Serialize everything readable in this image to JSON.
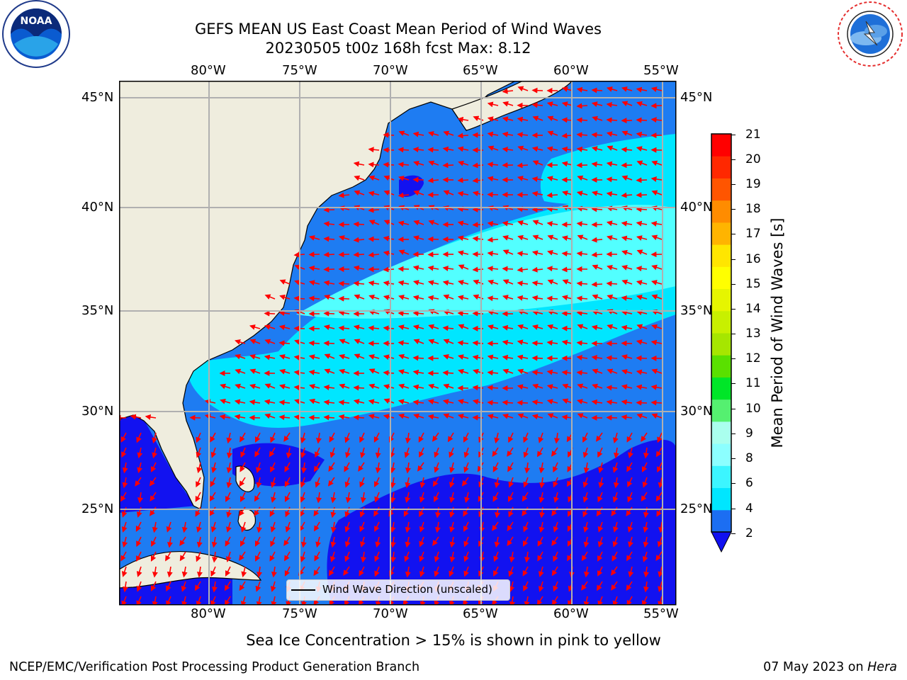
{
  "title": {
    "line1": "GEFS MEAN US East Coast Mean Period of Wind Waves",
    "line2": "20230505 t00z 168h fcst   Max: 8.12"
  },
  "logos": {
    "noaa": {
      "text": "NOAA",
      "ring": "NATIONAL OCEANIC AND ATMOSPHERIC ADMINISTRATION · U.S. DEPARTMENT OF COMMERCE"
    },
    "nws": {
      "ring": "NATIONAL WEATHER SERVICE"
    }
  },
  "map": {
    "lon_ticks": [
      "80°W",
      "75°W",
      "70°W",
      "65°W",
      "60°W",
      "55°W"
    ],
    "lat_ticks": [
      "45°N",
      "40°N",
      "35°N",
      "30°N",
      "25°N"
    ],
    "extent": {
      "lon_min": -85,
      "lon_max": -54.3,
      "lat_min": 20.5,
      "lat_max": 45.9
    },
    "legend_label": "Wind Wave Direction (unscaled)",
    "colors": {
      "land": "#efedde",
      "ocean_2_4": "#1e7cf2",
      "ocean_4_6": "#00e6ff",
      "ocean_6_8": "#52ffff",
      "ocean_lt2": "#1212f0",
      "arrows": "#ff0000",
      "grid": "#b0b0b0"
    }
  },
  "colorbar": {
    "label": "Mean Period of Wind Waves [s]",
    "ticks": [
      "21",
      "20",
      "19",
      "18",
      "17",
      "16",
      "15",
      "14",
      "13",
      "12",
      "11",
      "10",
      "9",
      "8",
      "6",
      "4",
      "2"
    ],
    "levels": [
      {
        "value": "2",
        "color": "#1c6ef2"
      },
      {
        "value": "4",
        "color": "#00e6ff"
      },
      {
        "value": "6",
        "color": "#3cf5ff"
      },
      {
        "value": "8",
        "color": "#8cffff"
      },
      {
        "value": "9",
        "color": "#aaffee"
      },
      {
        "value": "9-10",
        "color": "#55f070"
      },
      {
        "value": "10-11",
        "color": "#00e628"
      },
      {
        "value": "11-12",
        "color": "#5ae000"
      },
      {
        "value": "12-13",
        "color": "#a6e600"
      },
      {
        "value": "13-14",
        "color": "#c8f000"
      },
      {
        "value": "14-15",
        "color": "#e6f500"
      },
      {
        "value": "15-16",
        "color": "#ffff00"
      },
      {
        "value": "16-17",
        "color": "#ffe600"
      },
      {
        "value": "17-18",
        "color": "#ffb400"
      },
      {
        "value": "18-19",
        "color": "#ff8c00"
      },
      {
        "value": "19-20",
        "color": "#ff5500"
      },
      {
        "value": "20-21",
        "color": "#ff2800"
      },
      {
        "value": "21+",
        "color": "#ff0000"
      }
    ],
    "under_color": "#1010f0"
  },
  "caption": "Sea Ice Concentration > 15% is shown in pink to yellow",
  "footer": {
    "left": "NCEP/EMC/Verification Post Processing Product Generation Branch",
    "date": "07 May 2023 on ",
    "machine": "Hera"
  }
}
